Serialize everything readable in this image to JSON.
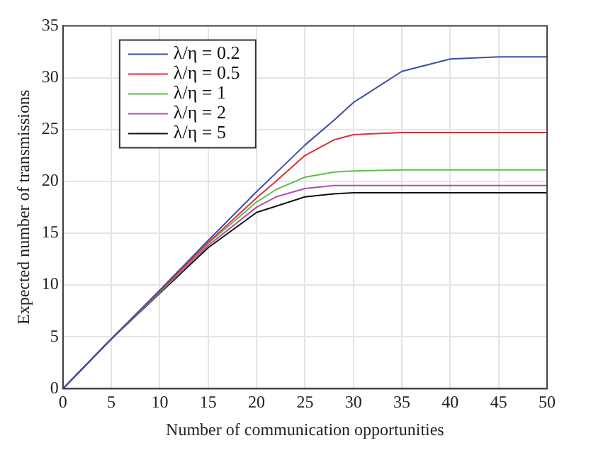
{
  "chart_data": {
    "type": "line",
    "xlabel": "Number of communication opportunities",
    "ylabel": "Expected number of transmissions",
    "xlim": [
      0,
      50
    ],
    "xticks": [
      0,
      5,
      10,
      15,
      20,
      25,
      30,
      35,
      40,
      45,
      50
    ],
    "ylim": [
      0,
      35
    ],
    "yticks": [
      0,
      5,
      10,
      15,
      20,
      25,
      30,
      35
    ],
    "grid": true,
    "legend": "top left",
    "marker": "none",
    "line_style": "solid",
    "x": [
      0,
      5,
      10,
      15,
      20,
      22,
      25,
      28,
      30,
      35,
      40,
      45,
      50
    ],
    "series": [
      {
        "name": "λ/η = 0.2",
        "color": "#3b4fa8",
        "values": [
          0,
          4.8,
          9.5,
          14.3,
          19,
          20.8,
          23.5,
          25.9,
          27.6,
          30.6,
          31.8,
          32,
          32
        ]
      },
      {
        "name": "λ/η = 0.5",
        "color": "#e0303a",
        "values": [
          0,
          4.8,
          9.4,
          14.1,
          18.4,
          20,
          22.5,
          24,
          24.5,
          24.7,
          24.7,
          24.7,
          24.7
        ]
      },
      {
        "name": "λ/η = 1",
        "color": "#5fbf4a",
        "values": [
          0,
          4.8,
          9.3,
          14,
          18,
          19.2,
          20.4,
          20.9,
          21,
          21.1,
          21.1,
          21.1,
          21.1
        ]
      },
      {
        "name": "λ/η = 2",
        "color": "#b04fb0",
        "values": [
          0,
          4.8,
          9.3,
          13.8,
          17.5,
          18.5,
          19.3,
          19.6,
          19.6,
          19.6,
          19.6,
          19.6,
          19.6
        ]
      },
      {
        "name": "λ/η = 5",
        "color": "#111111",
        "values": [
          0,
          4.8,
          9.2,
          13.6,
          17,
          17.6,
          18.5,
          18.8,
          18.9,
          18.9,
          18.9,
          18.9,
          18.9
        ]
      }
    ]
  }
}
